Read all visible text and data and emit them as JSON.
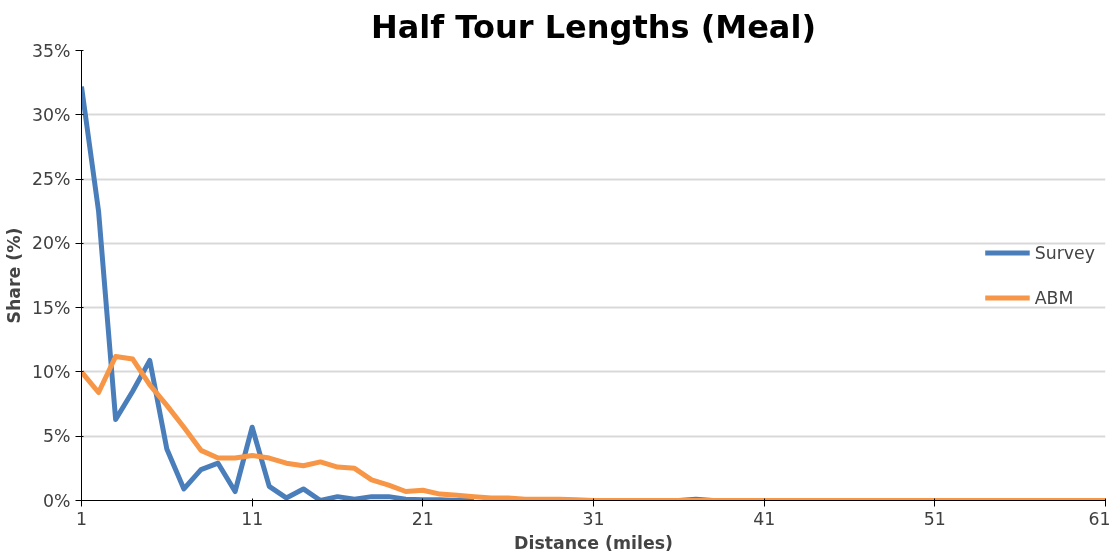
{
  "chart_data": {
    "type": "line",
    "title": "Half Tour Lengths (Meal)",
    "xlabel": "Distance (miles)",
    "ylabel": "Share (%)",
    "x": [
      1,
      2,
      3,
      4,
      5,
      6,
      7,
      8,
      9,
      10,
      11,
      12,
      13,
      14,
      15,
      16,
      17,
      18,
      19,
      20,
      21,
      22,
      23,
      24,
      25,
      26,
      27,
      28,
      29,
      30,
      31,
      32,
      33,
      34,
      35,
      36,
      37,
      38,
      39,
      40,
      41,
      42,
      43,
      44,
      45,
      46,
      47,
      48,
      49,
      50,
      51,
      52,
      53,
      54,
      55,
      56,
      57,
      58,
      59,
      60,
      61
    ],
    "series": [
      {
        "name": "Survey",
        "color": "#4a7ebb",
        "values": [
          32.2,
          22.5,
          6.3,
          8.5,
          10.9,
          4.0,
          0.9,
          2.4,
          2.9,
          0.7,
          5.7,
          1.1,
          0.2,
          0.9,
          0.0,
          0.3,
          0.1,
          0.3,
          0.3,
          0.1,
          0.05,
          0.05,
          0,
          0,
          null,
          null,
          null,
          null,
          null,
          null,
          null,
          null,
          null,
          null,
          null,
          0,
          0.1,
          0,
          null,
          null,
          null,
          null,
          null,
          null,
          null,
          null,
          null,
          null,
          null,
          null,
          null,
          null,
          null,
          null,
          null,
          null,
          null,
          null,
          null,
          null,
          null
        ]
      },
      {
        "name": "ABM",
        "color": "#f79646",
        "values": [
          10.0,
          8.4,
          11.2,
          11.0,
          9.0,
          7.4,
          5.7,
          3.9,
          3.3,
          3.3,
          3.5,
          3.3,
          2.9,
          2.7,
          3.0,
          2.6,
          2.5,
          1.6,
          1.2,
          0.7,
          0.8,
          0.5,
          0.4,
          0.3,
          0.2,
          0.2,
          0.1,
          0.1,
          0.1,
          0.05,
          0,
          0,
          0,
          0,
          0,
          0,
          0,
          0,
          0,
          0,
          0,
          0,
          0,
          0,
          0,
          0,
          0,
          0,
          0,
          0,
          0,
          0,
          0,
          0,
          0,
          0,
          0,
          0,
          0,
          0,
          0
        ]
      }
    ],
    "xlim": [
      1,
      61
    ],
    "xticks": [
      1,
      11,
      21,
      31,
      41,
      51,
      61
    ],
    "ylim": [
      0,
      35
    ],
    "yticks": [
      {
        "value": 0,
        "label": "0%"
      },
      {
        "value": 5,
        "label": "5%"
      },
      {
        "value": 10,
        "label": "10%"
      },
      {
        "value": 15,
        "label": "15%"
      },
      {
        "value": 20,
        "label": "20%"
      },
      {
        "value": 25,
        "label": "25%"
      },
      {
        "value": 30,
        "label": "30%"
      },
      {
        "value": 35,
        "label": "35%"
      }
    ],
    "grid": "y",
    "legend": "right",
    "marker": "none",
    "line_style": "solid"
  }
}
